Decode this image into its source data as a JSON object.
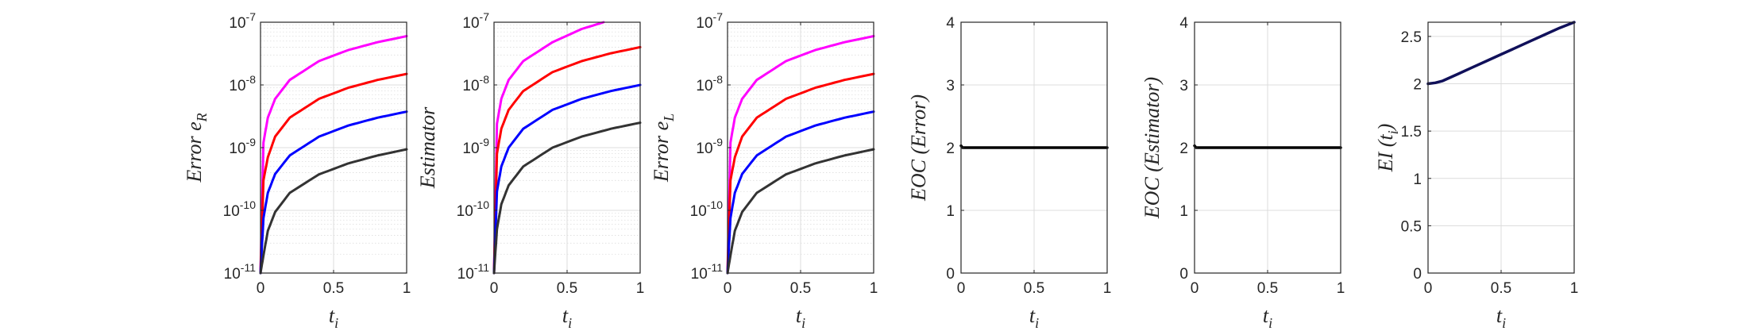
{
  "chart_data": [
    {
      "type": "line",
      "yscale": "log",
      "xlim": [
        0,
        1
      ],
      "ylim": [
        1e-11,
        1e-07
      ],
      "xticks": [
        0,
        0.5,
        1
      ],
      "xtick_labels": [
        "0",
        "0.5",
        "1"
      ],
      "ytick_labels": [
        {
          "base": "10",
          "exp": "-11"
        },
        {
          "base": "10",
          "exp": "-10"
        },
        {
          "base": "10",
          "exp": "-9"
        },
        {
          "base": "10",
          "exp": "-8"
        },
        {
          "base": "10",
          "exp": "-7"
        }
      ],
      "xlabel": {
        "main": "t",
        "sub": "i"
      },
      "ylabel": {
        "main": "Error e",
        "sub": "R"
      },
      "grid": true,
      "minor_grid": true,
      "series": [
        {
          "color": "#ff00ff",
          "x": [
            0,
            0.02,
            0.05,
            0.1,
            0.2,
            0.4,
            0.6,
            0.8,
            1.0
          ],
          "y": [
            1e-11,
            1.2e-09,
            3e-09,
            6e-09,
            1.2e-08,
            2.4e-08,
            3.6e-08,
            4.8e-08,
            6e-08
          ]
        },
        {
          "color": "#ff0000",
          "x": [
            0,
            0.02,
            0.05,
            0.1,
            0.2,
            0.4,
            0.6,
            0.8,
            1.0
          ],
          "y": [
            1e-11,
            3e-10,
            7e-10,
            1.5e-09,
            3e-09,
            6e-09,
            9e-09,
            1.2e-08,
            1.5e-08
          ]
        },
        {
          "color": "#0000ff",
          "x": [
            0,
            0.02,
            0.05,
            0.1,
            0.2,
            0.4,
            0.6,
            0.8,
            1.0
          ],
          "y": [
            1e-11,
            7.5e-11,
            1.9e-10,
            3.8e-10,
            7.5e-10,
            1.5e-09,
            2.25e-09,
            3e-09,
            3.75e-09
          ]
        },
        {
          "color": "#333333",
          "x": [
            0,
            0.02,
            0.05,
            0.1,
            0.2,
            0.4,
            0.6,
            0.8,
            1.0
          ],
          "y": [
            1e-11,
            1.9e-11,
            4.7e-11,
            9.4e-11,
            1.9e-10,
            3.75e-10,
            5.6e-10,
            7.5e-10,
            9.4e-10
          ]
        }
      ]
    },
    {
      "type": "line",
      "yscale": "log",
      "xlim": [
        0,
        1
      ],
      "ylim": [
        1e-11,
        1e-07
      ],
      "xticks": [
        0,
        0.5,
        1
      ],
      "xtick_labels": [
        "0",
        "0.5",
        "1"
      ],
      "ytick_labels": [
        {
          "base": "10",
          "exp": "-11"
        },
        {
          "base": "10",
          "exp": "-10"
        },
        {
          "base": "10",
          "exp": "-9"
        },
        {
          "base": "10",
          "exp": "-8"
        },
        {
          "base": "10",
          "exp": "-7"
        }
      ],
      "xlabel": {
        "main": "t",
        "sub": "i"
      },
      "ylabel": {
        "main": "Estimator",
        "sub": ""
      },
      "grid": true,
      "minor_grid": true,
      "series": [
        {
          "color": "#ff00ff",
          "x": [
            0,
            0.02,
            0.05,
            0.1,
            0.2,
            0.4,
            0.6,
            0.75
          ],
          "y": [
            1e-11,
            2.4e-09,
            6e-09,
            1.2e-08,
            2.4e-08,
            4.8e-08,
            7.8e-08,
            1e-07
          ]
        },
        {
          "color": "#ff0000",
          "x": [
            0,
            0.02,
            0.05,
            0.1,
            0.2,
            0.4,
            0.6,
            0.8,
            1.0
          ],
          "y": [
            1e-11,
            8e-10,
            2e-09,
            4e-09,
            8e-09,
            1.6e-08,
            2.4e-08,
            3.2e-08,
            4e-08
          ]
        },
        {
          "color": "#0000ff",
          "x": [
            0,
            0.02,
            0.05,
            0.1,
            0.2,
            0.4,
            0.6,
            0.8,
            1.0
          ],
          "y": [
            1e-11,
            2e-10,
            5e-10,
            1e-09,
            2e-09,
            4e-09,
            6e-09,
            8e-09,
            1e-08
          ]
        },
        {
          "color": "#333333",
          "x": [
            0,
            0.02,
            0.05,
            0.1,
            0.2,
            0.4,
            0.6,
            0.8,
            1.0
          ],
          "y": [
            1e-11,
            5e-11,
            1.25e-10,
            2.5e-10,
            5e-10,
            1e-09,
            1.5e-09,
            2e-09,
            2.5e-09
          ]
        }
      ]
    },
    {
      "type": "line",
      "yscale": "log",
      "xlim": [
        0,
        1
      ],
      "ylim": [
        1e-11,
        1e-07
      ],
      "xticks": [
        0,
        0.5,
        1
      ],
      "xtick_labels": [
        "0",
        "0.5",
        "1"
      ],
      "ytick_labels": [
        {
          "base": "10",
          "exp": "-11"
        },
        {
          "base": "10",
          "exp": "-10"
        },
        {
          "base": "10",
          "exp": "-9"
        },
        {
          "base": "10",
          "exp": "-8"
        },
        {
          "base": "10",
          "exp": "-7"
        }
      ],
      "xlabel": {
        "main": "t",
        "sub": "i"
      },
      "ylabel": {
        "main": "Error e",
        "sub": "L"
      },
      "grid": true,
      "minor_grid": true,
      "series": [
        {
          "color": "#ff00ff",
          "x": [
            0,
            0.02,
            0.05,
            0.1,
            0.2,
            0.4,
            0.6,
            0.8,
            1.0
          ],
          "y": [
            1e-11,
            1.2e-09,
            3e-09,
            6e-09,
            1.2e-08,
            2.4e-08,
            3.6e-08,
            4.8e-08,
            6e-08
          ]
        },
        {
          "color": "#ff0000",
          "x": [
            0,
            0.02,
            0.05,
            0.1,
            0.2,
            0.4,
            0.6,
            0.8,
            1.0
          ],
          "y": [
            1e-11,
            3e-10,
            7e-10,
            1.5e-09,
            3e-09,
            6e-09,
            9e-09,
            1.2e-08,
            1.5e-08
          ]
        },
        {
          "color": "#0000ff",
          "x": [
            0,
            0.02,
            0.05,
            0.1,
            0.2,
            0.4,
            0.6,
            0.8,
            1.0
          ],
          "y": [
            1e-11,
            7.5e-11,
            1.9e-10,
            3.8e-10,
            7.5e-10,
            1.5e-09,
            2.25e-09,
            3e-09,
            3.75e-09
          ]
        },
        {
          "color": "#333333",
          "x": [
            0,
            0.02,
            0.05,
            0.1,
            0.2,
            0.4,
            0.6,
            0.8,
            1.0
          ],
          "y": [
            1e-11,
            1.9e-11,
            4.7e-11,
            9.4e-11,
            1.9e-10,
            3.75e-10,
            5.6e-10,
            7.5e-10,
            9.4e-10
          ]
        }
      ]
    },
    {
      "type": "line",
      "yscale": "linear",
      "xlim": [
        0,
        1
      ],
      "ylim": [
        0,
        4
      ],
      "xticks": [
        0,
        0.5,
        1
      ],
      "xtick_labels": [
        "0",
        "0.5",
        "1"
      ],
      "yticks": [
        0,
        1,
        2,
        3,
        4
      ],
      "ytick_labels": [
        "0",
        "1",
        "2",
        "3",
        "4"
      ],
      "xlabel": {
        "main": "t",
        "sub": "i"
      },
      "ylabel": {
        "main": "EOC (Error)",
        "sub": ""
      },
      "grid": true,
      "series": [
        {
          "color": "#000000",
          "x": [
            0,
            0.01,
            0.5,
            1.0
          ],
          "y": [
            2.03,
            2.0,
            2.0,
            2.0
          ]
        }
      ]
    },
    {
      "type": "line",
      "yscale": "linear",
      "xlim": [
        0,
        1
      ],
      "ylim": [
        0,
        4
      ],
      "xticks": [
        0,
        0.5,
        1
      ],
      "xtick_labels": [
        "0",
        "0.5",
        "1"
      ],
      "yticks": [
        0,
        1,
        2,
        3,
        4
      ],
      "ytick_labels": [
        "0",
        "1",
        "2",
        "3",
        "4"
      ],
      "xlabel": {
        "main": "t",
        "sub": "i"
      },
      "ylabel": {
        "main": "EOC (Estimator)",
        "sub": ""
      },
      "grid": true,
      "series": [
        {
          "color": "#000000",
          "x": [
            0,
            0.01,
            0.5,
            1.0
          ],
          "y": [
            2.03,
            2.0,
            2.0,
            2.0
          ]
        }
      ]
    },
    {
      "type": "line",
      "yscale": "linear",
      "xlim": [
        0,
        1
      ],
      "ylim": [
        0,
        2.65
      ],
      "xticks": [
        0,
        0.5,
        1
      ],
      "xtick_labels": [
        "0",
        "0.5",
        "1"
      ],
      "yticks": [
        0,
        0.5,
        1,
        1.5,
        2,
        2.5
      ],
      "ytick_labels": [
        "0",
        "0.5",
        "1",
        "1.5",
        "2",
        "2.5"
      ],
      "xlabel": {
        "main": "t",
        "sub": "i"
      },
      "ylabel": {
        "main": "EI (t",
        "sub": "i",
        "suffix": ")"
      },
      "grid": true,
      "series": [
        {
          "color": "#10105a",
          "x": [
            0,
            0.05,
            0.1,
            0.2,
            0.3,
            0.4,
            0.5,
            0.6,
            0.7,
            0.8,
            0.9,
            1.0
          ],
          "y": [
            2.0,
            2.01,
            2.03,
            2.1,
            2.17,
            2.24,
            2.31,
            2.38,
            2.45,
            2.52,
            2.59,
            2.65
          ]
        }
      ]
    }
  ]
}
